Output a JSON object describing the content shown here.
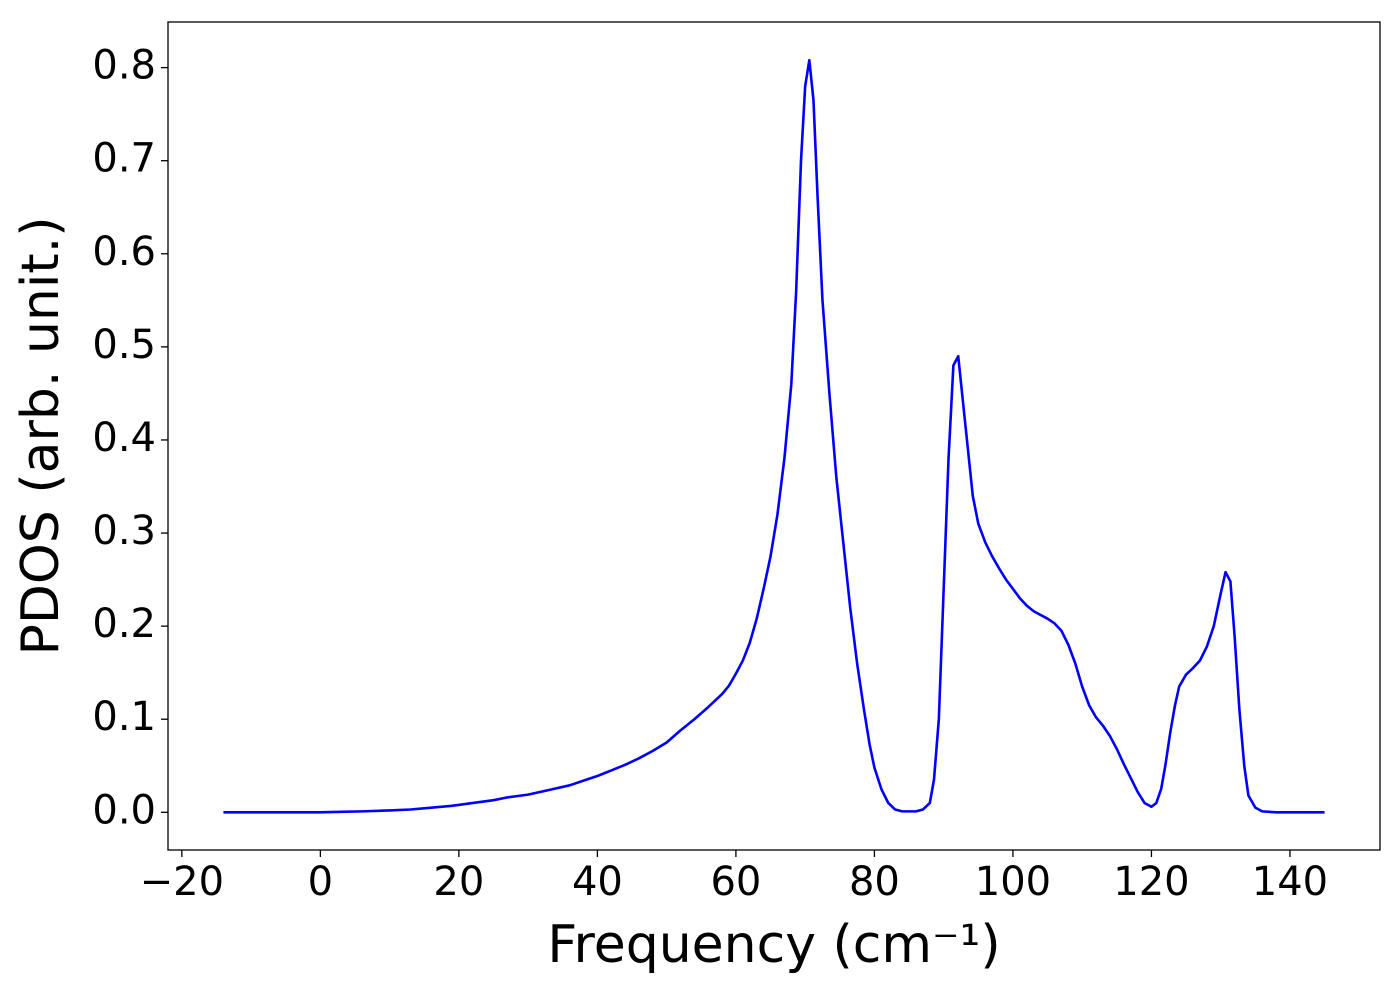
{
  "chart_data": {
    "type": "line",
    "xlabel": "Frequency (cm⁻¹)",
    "ylabel": "PDOS (arb. unit.)",
    "color": "#0000ff",
    "x": [
      -14,
      -10,
      -5,
      0,
      3,
      6,
      10,
      13,
      16,
      19,
      21,
      23,
      25,
      27,
      30,
      33,
      36,
      38,
      40,
      42,
      44,
      46,
      48,
      50,
      52,
      54,
      56,
      58,
      59,
      60,
      61,
      62,
      63,
      64,
      65,
      66,
      67,
      68,
      68.7,
      69.4,
      70,
      70.6,
      71.2,
      71.8,
      72.5,
      73.5,
      74.5,
      75.5,
      76.5,
      77.5,
      78.5,
      79.3,
      80,
      81,
      82,
      83,
      84,
      86,
      87,
      88,
      88.6,
      89.3,
      90,
      90.7,
      91.4,
      92.1,
      92.8,
      93.5,
      94.2,
      95,
      96,
      97,
      98,
      99,
      100,
      101,
      102,
      103,
      104,
      105,
      106,
      107,
      108,
      109,
      110,
      111,
      112,
      113,
      114,
      115,
      116,
      117,
      118,
      119,
      120,
      120.7,
      121.4,
      122,
      122.7,
      123.4,
      124,
      125,
      126,
      127,
      128,
      129,
      130,
      130.7,
      131.4,
      132,
      132.7,
      133.4,
      134,
      135,
      136,
      138,
      141,
      145
    ],
    "values": [
      0,
      0,
      0,
      0,
      0.0005,
      0.001,
      0.002,
      0.003,
      0.005,
      0.007,
      0.009,
      0.011,
      0.013,
      0.016,
      0.019,
      0.024,
      0.029,
      0.034,
      0.039,
      0.045,
      0.051,
      0.058,
      0.066,
      0.075,
      0.088,
      0.1,
      0.113,
      0.127,
      0.136,
      0.149,
      0.163,
      0.182,
      0.208,
      0.24,
      0.275,
      0.32,
      0.38,
      0.46,
      0.56,
      0.7,
      0.78,
      0.808,
      0.765,
      0.66,
      0.55,
      0.45,
      0.36,
      0.29,
      0.22,
      0.16,
      0.11,
      0.073,
      0.048,
      0.025,
      0.01,
      0.003,
      0.001,
      0.001,
      0.003,
      0.01,
      0.035,
      0.1,
      0.24,
      0.38,
      0.48,
      0.49,
      0.44,
      0.39,
      0.34,
      0.31,
      0.29,
      0.275,
      0.262,
      0.25,
      0.24,
      0.23,
      0.222,
      0.216,
      0.212,
      0.208,
      0.203,
      0.195,
      0.18,
      0.16,
      0.135,
      0.115,
      0.102,
      0.093,
      0.082,
      0.068,
      0.052,
      0.037,
      0.022,
      0.01,
      0.006,
      0.01,
      0.025,
      0.05,
      0.085,
      0.115,
      0.135,
      0.148,
      0.155,
      0.163,
      0.178,
      0.2,
      0.235,
      0.258,
      0.248,
      0.19,
      0.11,
      0.05,
      0.018,
      0.005,
      0.001,
      0,
      0,
      0
    ],
    "xlim": [
      -22,
      153
    ],
    "ylim": [
      -0.0405,
      0.849
    ],
    "xticks": [
      {
        "value": -20,
        "label": "−20"
      },
      0,
      20,
      40,
      60,
      80,
      100,
      120,
      140
    ],
    "yticks": [
      {
        "value": 0,
        "label": "0.0"
      },
      0.1,
      0.2,
      0.3,
      0.4,
      0.5,
      0.6,
      0.7,
      0.8
    ],
    "grid": false
  }
}
